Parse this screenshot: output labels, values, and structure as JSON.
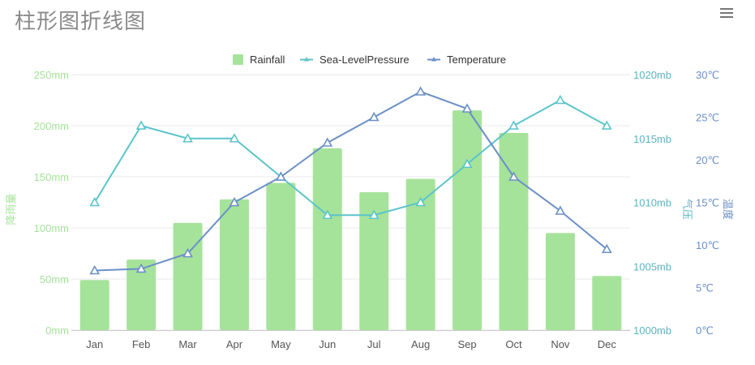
{
  "title": "柱形图折线图",
  "menu": {
    "icon": "hamburger-menu-icon"
  },
  "colors": {
    "rainfall": "#a5e39a",
    "pressure": "#5bc4c9",
    "temperature": "#6b8fc7",
    "rainfall_axis": "#a5e39a",
    "pressure_axis": "#5bb5bf",
    "temperature_axis": "#6b8fc7",
    "grid": "#e9e9e9",
    "tick_text": "#555555"
  },
  "chart_data": {
    "type": "bar",
    "title": "柱形图折线图",
    "categories": [
      "Jan",
      "Feb",
      "Mar",
      "Apr",
      "May",
      "Jun",
      "Jul",
      "Aug",
      "Sep",
      "Oct",
      "Nov",
      "Dec"
    ],
    "series": [
      {
        "name": "Rainfall",
        "type": "bar",
        "axis": "left",
        "values": [
          49,
          69,
          105,
          128,
          144,
          178,
          135,
          148,
          215,
          193,
          95,
          53
        ]
      },
      {
        "name": "Sea-LevelPressure",
        "type": "line",
        "axis": "right-inner",
        "values": [
          1010,
          1016,
          1015,
          1015,
          1012,
          1009,
          1009,
          1010,
          1013,
          1016,
          1018,
          1016
        ]
      },
      {
        "name": "Temperature",
        "type": "line",
        "axis": "right-outer",
        "values": [
          7,
          7.2,
          9,
          15,
          18,
          22,
          25,
          28,
          26,
          18,
          14,
          9.5
        ]
      }
    ],
    "axes": {
      "left": {
        "label": "降雨量",
        "ylim": [
          0,
          250
        ],
        "ticks": [
          "0mm",
          "50mm",
          "100mm",
          "150mm",
          "200mm",
          "250mm"
        ]
      },
      "right_inner": {
        "label": "气压",
        "ylim": [
          1000,
          1020
        ],
        "ticks": [
          "1000mb",
          "1005mb",
          "1010mb",
          "1015mb",
          "1020mb"
        ]
      },
      "right_outer": {
        "label": "温度",
        "ylim": [
          0,
          30
        ],
        "ticks": [
          "0℃",
          "5℃",
          "10℃",
          "15℃",
          "20℃",
          "25℃",
          "30℃"
        ]
      }
    },
    "grid": true,
    "legend_position": "top-center"
  }
}
